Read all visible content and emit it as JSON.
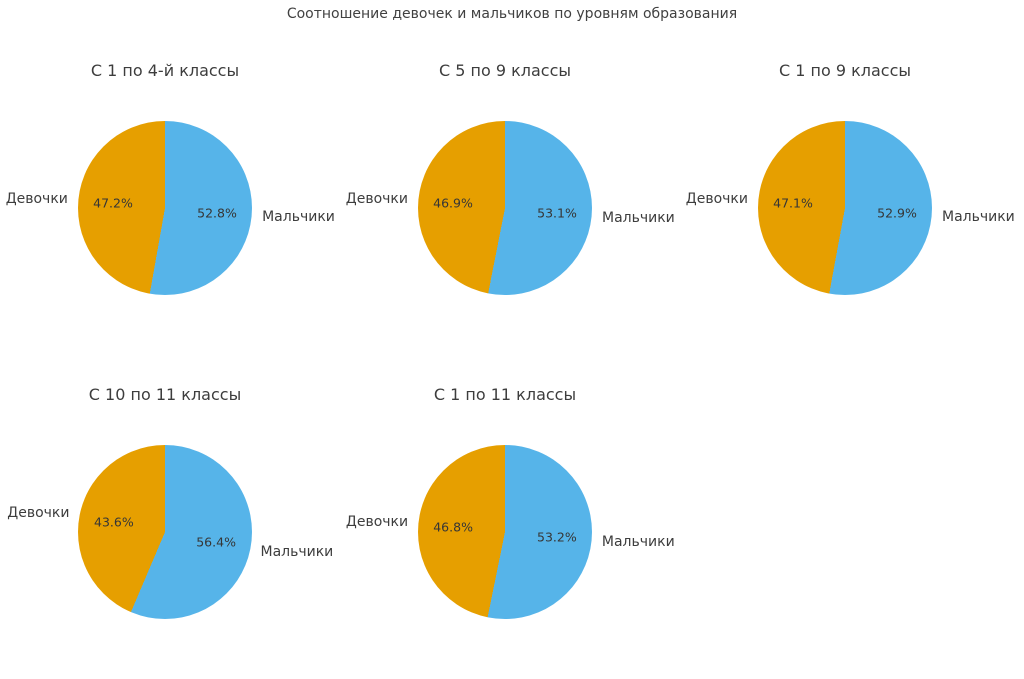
{
  "figure": {
    "title": "Соотношение девочек и мальчиков по уровням образования",
    "background": "#ffffff",
    "text_color": "#3d3d3d"
  },
  "palette": {
    "girls_color": "#E69F00",
    "boys_color": "#56B4E9"
  },
  "chart_data": [
    {
      "type": "pie",
      "title": "С 1 по 4-й классы",
      "labels": [
        "Девочки",
        "Мальчики"
      ],
      "values": [
        47.2,
        52.8
      ],
      "pct_labels": [
        "47.2%",
        "52.8%"
      ],
      "colors": [
        "#E69F00",
        "#56B4E9"
      ],
      "start_angle": 90,
      "legend": "none",
      "label_position": "outside",
      "pct_position": "inside"
    },
    {
      "type": "pie",
      "title": "С 5 по 9 классы",
      "labels": [
        "Девочки",
        "Мальчики"
      ],
      "values": [
        46.9,
        53.1
      ],
      "pct_labels": [
        "46.9%",
        "53.1%"
      ],
      "colors": [
        "#E69F00",
        "#56B4E9"
      ],
      "start_angle": 90,
      "legend": "none",
      "label_position": "outside",
      "pct_position": "inside"
    },
    {
      "type": "pie",
      "title": "С 1 по 9 классы",
      "labels": [
        "Девочки",
        "Мальчики"
      ],
      "values": [
        47.1,
        52.9
      ],
      "pct_labels": [
        "47.1%",
        "52.9%"
      ],
      "colors": [
        "#E69F00",
        "#56B4E9"
      ],
      "start_angle": 90,
      "legend": "none",
      "label_position": "outside",
      "pct_position": "inside"
    },
    {
      "type": "pie",
      "title": "С 10 по 11 классы",
      "labels": [
        "Девочки",
        "Мальчики"
      ],
      "values": [
        43.6,
        56.4
      ],
      "pct_labels": [
        "43.6%",
        "56.4%"
      ],
      "colors": [
        "#E69F00",
        "#56B4E9"
      ],
      "start_angle": 90,
      "legend": "none",
      "label_position": "outside",
      "pct_position": "inside"
    },
    {
      "type": "pie",
      "title": "С 1 по 11 классы",
      "labels": [
        "Девочки",
        "Мальчики"
      ],
      "values": [
        46.8,
        53.2
      ],
      "pct_labels": [
        "46.8%",
        "53.2%"
      ],
      "colors": [
        "#E69F00",
        "#56B4E9"
      ],
      "start_angle": 90,
      "legend": "none",
      "label_position": "outside",
      "pct_position": "inside"
    }
  ]
}
